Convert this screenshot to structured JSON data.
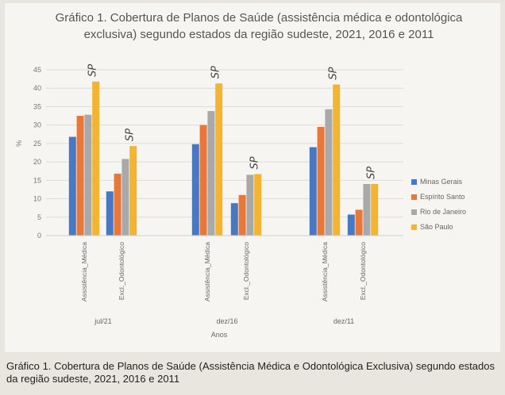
{
  "caption": "Gráfico 1. Cobertura de Planos de Saúde (Assistência Médica e Odontológica Exclusiva) segundo estados da região sudeste, 2021, 2016 e 2011",
  "chart_data": {
    "type": "bar",
    "title": "Gráfico 1. Cobertura de Planos de Saúde (assistência médica e odontológica exclusiva) segundo estados da região sudeste, 2021, 2016 e 2011",
    "xlabel": "Anos",
    "ylabel": "%",
    "ylim": [
      0,
      45
    ],
    "yticks": [
      "0",
      "5",
      "10",
      "15",
      "20",
      "25",
      "30",
      "35",
      "40",
      "45"
    ],
    "grid": true,
    "legend_position": "right",
    "groups": [
      {
        "label": "jul/21",
        "categories": [
          {
            "label": "Assistência_Médica",
            "values": [
              26.8,
              32.5,
              32.8,
              41.8
            ],
            "annotation": "SP"
          },
          {
            "label": "Excl._Odontológico",
            "values": [
              12.0,
              16.8,
              20.8,
              24.3
            ],
            "annotation": "SP"
          }
        ]
      },
      {
        "label": "dez/16",
        "categories": [
          {
            "label": "Assistência_Médica",
            "values": [
              24.8,
              30.0,
              33.8,
              41.3
            ],
            "annotation": "SP"
          },
          {
            "label": "Excl._Odontológico",
            "values": [
              8.8,
              11.0,
              16.5,
              16.7
            ],
            "annotation": "SP"
          }
        ]
      },
      {
        "label": "dez/11",
        "categories": [
          {
            "label": "Assistência_Médica",
            "values": [
              24.0,
              29.5,
              34.3,
              41.0
            ],
            "annotation": "SP"
          },
          {
            "label": "Excl._Odontológico",
            "values": [
              5.7,
              7.0,
              14.0,
              14.0
            ],
            "annotation": "SP"
          }
        ]
      }
    ],
    "series": [
      {
        "name": "Minas Gerais",
        "color": "#4a78c0"
      },
      {
        "name": "Espírito Santo",
        "color": "#e8773a"
      },
      {
        "name": "Rio de Janeiro",
        "color": "#a9a9a9"
      },
      {
        "name": "São Paulo",
        "color": "#f3b432"
      }
    ]
  }
}
